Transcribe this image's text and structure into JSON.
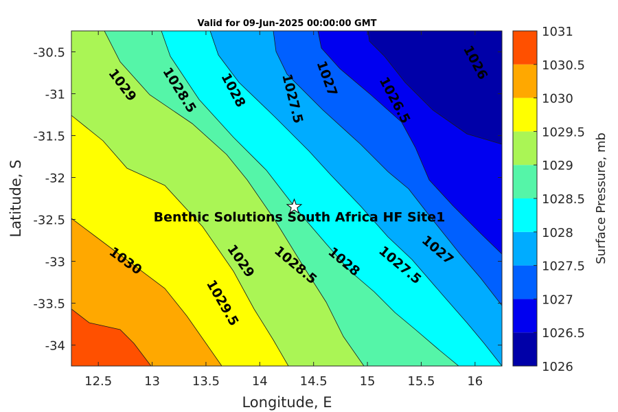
{
  "chart_data": {
    "type": "contour",
    "title": "Valid for 09-Jun-2025 00:00:00 GMT",
    "xlabel": "Longitude, E",
    "ylabel": "Latitude, S",
    "xlim": [
      12.25,
      16.25
    ],
    "ylim": [
      -34.25,
      -30.25
    ],
    "xticks": [
      "12.5",
      "13",
      "13.5",
      "14",
      "14.5",
      "15",
      "15.5",
      "16"
    ],
    "xtick_values": [
      12.5,
      13,
      13.5,
      14,
      14.5,
      15,
      15.5,
      16
    ],
    "yticks": [
      "-30.5",
      "-31",
      "-31.5",
      "-32",
      "-32.5",
      "-33",
      "-33.5",
      "-34"
    ],
    "ytick_values": [
      -30.5,
      -31,
      -31.5,
      -32,
      -32.5,
      -33,
      -33.5,
      -34
    ],
    "colorbar": {
      "label": "Surface Pressure, mb",
      "levels": [
        1026,
        1026.5,
        1027,
        1027.5,
        1028,
        1028.5,
        1029,
        1029.5,
        1030,
        1030.5,
        1031
      ],
      "tick_labels": [
        "1026",
        "1026.5",
        "1027",
        "1027.5",
        "1028",
        "1028.5",
        "1029",
        "1029.5",
        "1030",
        "1030.5",
        "1031"
      ],
      "colors": [
        "#0000a8",
        "#0000f0",
        "#0060ff",
        "#00acff",
        "#00ffff",
        "#55f5a8",
        "#aaf555",
        "#ffff00",
        "#ffa800",
        "#ff5000",
        "#ff0000"
      ]
    },
    "contour_labels": [
      {
        "text": "1026",
        "lon": 16.0,
        "lat": -30.63,
        "angle": 62
      },
      {
        "text": "1026.5",
        "lon": 15.25,
        "lat": -31.08,
        "angle": 62
      },
      {
        "text": "1027",
        "lon": 14.62,
        "lat": -30.82,
        "angle": 70
      },
      {
        "text": "1027.5",
        "lon": 14.3,
        "lat": -31.06,
        "angle": 76
      },
      {
        "text": "1028",
        "lon": 13.75,
        "lat": -30.96,
        "angle": 62
      },
      {
        "text": "1028.5",
        "lon": 13.25,
        "lat": -30.96,
        "angle": 58
      },
      {
        "text": "1029",
        "lon": 12.72,
        "lat": -30.9,
        "angle": 53
      },
      {
        "text": "1030",
        "lon": 12.75,
        "lat": -33.0,
        "angle": 36
      },
      {
        "text": "1029.5",
        "lon": 13.65,
        "lat": -33.5,
        "angle": 60
      },
      {
        "text": "1029",
        "lon": 13.82,
        "lat": -33.0,
        "angle": 55
      },
      {
        "text": "1028.5",
        "lon": 14.33,
        "lat": -33.05,
        "angle": 40
      },
      {
        "text": "1028",
        "lon": 14.78,
        "lat": -33.01,
        "angle": 40
      },
      {
        "text": "1027.5",
        "lon": 15.3,
        "lat": -33.05,
        "angle": 40
      },
      {
        "text": "1027",
        "lon": 15.65,
        "lat": -32.87,
        "angle": 40
      }
    ],
    "site": {
      "name": "Benthic Solutions South Africa HF Site1",
      "lon": 14.32,
      "lat": -32.35
    }
  }
}
